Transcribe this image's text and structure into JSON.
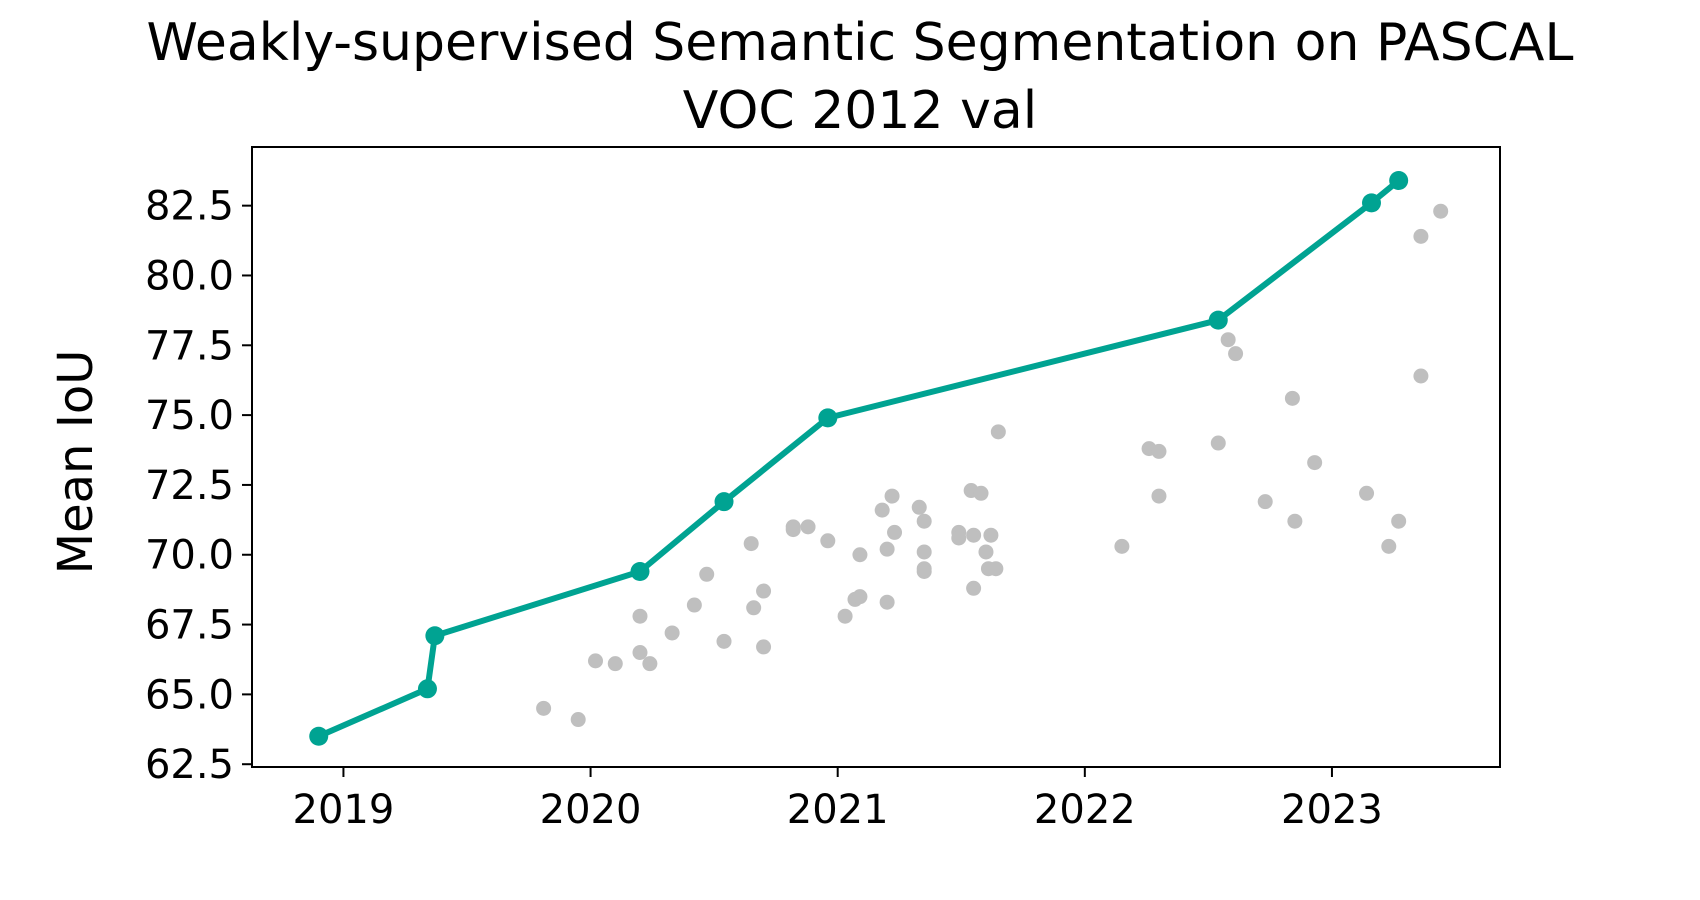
{
  "chart_data": {
    "type": "scatter",
    "title_line1": "Weakly-supervised Semantic Segmentation on PASCAL",
    "title_line2": "VOC 2012 val",
    "xlabel": "",
    "ylabel": "Mean IoU",
    "xlim": [
      2018.63,
      2023.68
    ],
    "ylim": [
      62.4,
      84.6
    ],
    "x_ticks": [
      2019,
      2020,
      2021,
      2022,
      2023
    ],
    "x_tick_labels": [
      "2019",
      "2020",
      "2021",
      "2022",
      "2023"
    ],
    "y_ticks": [
      62.5,
      65.0,
      67.5,
      70.0,
      72.5,
      75.0,
      77.5,
      80.0,
      82.5
    ],
    "y_tick_labels": [
      "62.5",
      "65.0",
      "67.5",
      "70.0",
      "72.5",
      "75.0",
      "77.5",
      "80.0",
      "82.5"
    ],
    "grid": false,
    "colors": {
      "sota": "#00a392",
      "other": "#bfbfbf"
    },
    "sota_series": {
      "points": [
        [
          2018.9,
          63.5
        ],
        [
          2019.34,
          65.2
        ],
        [
          2019.37,
          67.1
        ],
        [
          2020.2,
          69.4
        ],
        [
          2020.54,
          71.9
        ],
        [
          2020.96,
          74.9
        ],
        [
          2022.54,
          78.4
        ],
        [
          2023.16,
          82.6
        ],
        [
          2023.27,
          83.4
        ]
      ]
    },
    "other_series": {
      "points": [
        [
          2019.81,
          64.5
        ],
        [
          2019.95,
          64.1
        ],
        [
          2020.02,
          66.2
        ],
        [
          2020.1,
          66.1
        ],
        [
          2020.2,
          67.8
        ],
        [
          2020.2,
          66.5
        ],
        [
          2020.24,
          66.1
        ],
        [
          2020.33,
          67.2
        ],
        [
          2020.42,
          68.2
        ],
        [
          2020.47,
          69.3
        ],
        [
          2020.54,
          66.9
        ],
        [
          2020.65,
          70.4
        ],
        [
          2020.66,
          68.1
        ],
        [
          2020.7,
          68.7
        ],
        [
          2020.7,
          66.7
        ],
        [
          2020.82,
          71.0
        ],
        [
          2020.82,
          70.9
        ],
        [
          2020.88,
          71.0
        ],
        [
          2020.96,
          70.5
        ],
        [
          2021.03,
          67.8
        ],
        [
          2021.07,
          68.4
        ],
        [
          2021.09,
          68.5
        ],
        [
          2021.09,
          70.0
        ],
        [
          2021.18,
          71.6
        ],
        [
          2021.2,
          70.2
        ],
        [
          2021.2,
          68.3
        ],
        [
          2021.22,
          72.1
        ],
        [
          2021.23,
          70.8
        ],
        [
          2021.33,
          71.7
        ],
        [
          2021.35,
          71.2
        ],
        [
          2021.35,
          70.1
        ],
        [
          2021.35,
          69.5
        ],
        [
          2021.35,
          69.4
        ],
        [
          2021.49,
          70.8
        ],
        [
          2021.49,
          70.6
        ],
        [
          2021.54,
          72.3
        ],
        [
          2021.55,
          70.7
        ],
        [
          2021.55,
          68.8
        ],
        [
          2021.58,
          72.2
        ],
        [
          2021.6,
          70.1
        ],
        [
          2021.61,
          69.5
        ],
        [
          2021.62,
          70.7
        ],
        [
          2021.64,
          69.5
        ],
        [
          2021.65,
          74.4
        ],
        [
          2022.15,
          70.3
        ],
        [
          2022.26,
          73.8
        ],
        [
          2022.3,
          73.7
        ],
        [
          2022.3,
          72.1
        ],
        [
          2022.54,
          74.0
        ],
        [
          2022.58,
          77.7
        ],
        [
          2022.61,
          77.2
        ],
        [
          2022.73,
          71.9
        ],
        [
          2022.84,
          75.6
        ],
        [
          2022.85,
          71.2
        ],
        [
          2022.93,
          73.3
        ],
        [
          2023.14,
          72.2
        ],
        [
          2023.23,
          70.3
        ],
        [
          2023.27,
          71.2
        ],
        [
          2023.36,
          76.4
        ],
        [
          2023.36,
          81.4
        ],
        [
          2023.44,
          82.3
        ]
      ]
    }
  }
}
